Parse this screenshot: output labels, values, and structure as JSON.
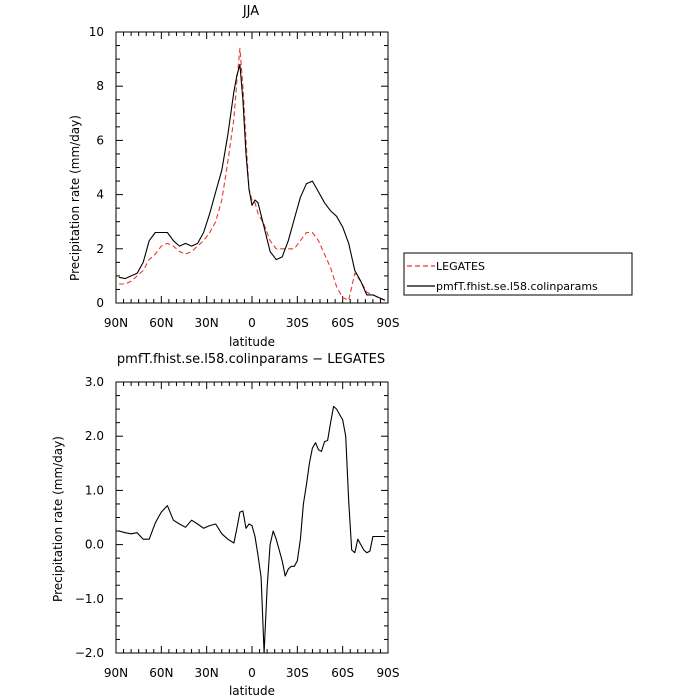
{
  "chart_data": [
    {
      "type": "line",
      "title": "JJA",
      "xlabel": "latitude",
      "ylabel": "Precipitation rate (mm/day)",
      "xlim": [
        -90,
        90
      ],
      "ylim": [
        0,
        10
      ],
      "x_ticks": [
        {
          "v": -90,
          "label": "90N"
        },
        {
          "v": -60,
          "label": "60N"
        },
        {
          "v": -30,
          "label": "30N"
        },
        {
          "v": 0,
          "label": "0"
        },
        {
          "v": 30,
          "label": "30S"
        },
        {
          "v": 60,
          "label": "60S"
        },
        {
          "v": 90,
          "label": "90S"
        }
      ],
      "y_ticks": [
        {
          "v": 0,
          "label": "0"
        },
        {
          "v": 2,
          "label": "2"
        },
        {
          "v": 4,
          "label": "4"
        },
        {
          "v": 6,
          "label": "6"
        },
        {
          "v": 8,
          "label": "8"
        },
        {
          "v": 10,
          "label": "10"
        }
      ],
      "legend_position": "right",
      "series": [
        {
          "name": "LEGATES",
          "color": "#e8392c",
          "dash": true,
          "x": [
            -88,
            -84,
            -80,
            -76,
            -72,
            -68,
            -64,
            -60,
            -56,
            -52,
            -48,
            -44,
            -40,
            -36,
            -32,
            -28,
            -24,
            -20,
            -16,
            -12,
            -10,
            -8,
            -6,
            -4,
            -2,
            0,
            2,
            4,
            8,
            12,
            16,
            20,
            24,
            28,
            32,
            36,
            40,
            44,
            48,
            52,
            56,
            60,
            64,
            68,
            72,
            76,
            80,
            84,
            88
          ],
          "y": [
            0.7,
            0.7,
            0.8,
            1.0,
            1.2,
            1.6,
            1.8,
            2.1,
            2.2,
            2.1,
            1.9,
            1.8,
            1.9,
            2.1,
            2.3,
            2.6,
            3.0,
            3.8,
            5.2,
            6.8,
            8.2,
            9.4,
            8.0,
            6.0,
            4.2,
            3.8,
            3.7,
            3.3,
            2.9,
            2.3,
            2.0,
            2.0,
            2.0,
            2.0,
            2.3,
            2.6,
            2.6,
            2.3,
            1.8,
            1.3,
            0.6,
            0.2,
            0.1,
            1.1,
            0.8,
            0.4,
            0.3,
            0.2,
            0.1
          ]
        },
        {
          "name": "pmfT.fhist.se.l58.colinparams",
          "color": "#000000",
          "dash": false,
          "x": [
            -88,
            -84,
            -80,
            -76,
            -72,
            -68,
            -64,
            -60,
            -56,
            -52,
            -48,
            -44,
            -40,
            -36,
            -32,
            -28,
            -24,
            -20,
            -16,
            -12,
            -10,
            -8,
            -6,
            -4,
            -2,
            0,
            2,
            4,
            8,
            12,
            16,
            20,
            24,
            28,
            32,
            36,
            40,
            44,
            48,
            52,
            56,
            60,
            64,
            68,
            72,
            76,
            80,
            84,
            88
          ],
          "y": [
            0.95,
            0.9,
            1.0,
            1.1,
            1.5,
            2.3,
            2.6,
            2.6,
            2.6,
            2.3,
            2.1,
            2.2,
            2.1,
            2.2,
            2.6,
            3.3,
            4.1,
            4.9,
            6.2,
            7.8,
            8.4,
            8.8,
            7.5,
            5.5,
            4.2,
            3.6,
            3.8,
            3.7,
            2.8,
            1.9,
            1.6,
            1.7,
            2.3,
            3.1,
            3.9,
            4.4,
            4.5,
            4.1,
            3.7,
            3.4,
            3.2,
            2.8,
            2.2,
            1.2,
            0.8,
            0.3,
            0.3,
            0.2,
            0.1
          ]
        }
      ]
    },
    {
      "type": "line",
      "title": "pmfT.fhist.se.l58.colinparams − LEGATES",
      "xlabel": "latitude",
      "ylabel": "Precipitation rate (mm/day)",
      "xlim": [
        -90,
        90
      ],
      "ylim": [
        -2,
        3
      ],
      "x_ticks": [
        {
          "v": -90,
          "label": "90N"
        },
        {
          "v": -60,
          "label": "60N"
        },
        {
          "v": -30,
          "label": "30N"
        },
        {
          "v": 0,
          "label": "0"
        },
        {
          "v": 30,
          "label": "30S"
        },
        {
          "v": 60,
          "label": "60S"
        },
        {
          "v": 90,
          "label": "90S"
        }
      ],
      "y_ticks": [
        {
          "v": -2,
          "label": "−2.0"
        },
        {
          "v": -1,
          "label": "−1.0"
        },
        {
          "v": 0,
          "label": "0.0"
        },
        {
          "v": 1,
          "label": "1.0"
        },
        {
          "v": 2,
          "label": "2.0"
        },
        {
          "v": 3,
          "label": "3.0"
        }
      ],
      "series": [
        {
          "color": "#000000",
          "dash": false,
          "x": [
            -88,
            -84,
            -80,
            -76,
            -72,
            -68,
            -64,
            -60,
            -56,
            -52,
            -48,
            -44,
            -40,
            -36,
            -32,
            -28,
            -24,
            -20,
            -16,
            -12,
            -10,
            -8,
            -6,
            -4,
            -2,
            0,
            2,
            4,
            6,
            8,
            10,
            12,
            14,
            16,
            18,
            20,
            22,
            24,
            26,
            28,
            30,
            32,
            34,
            36,
            38,
            40,
            42,
            44,
            46,
            48,
            50,
            52,
            54,
            56,
            58,
            60,
            62,
            64,
            66,
            68,
            70,
            72,
            74,
            76,
            78,
            80,
            82,
            84,
            86,
            88
          ],
          "y": [
            0.25,
            0.22,
            0.2,
            0.22,
            0.1,
            0.1,
            0.4,
            0.6,
            0.72,
            0.45,
            0.38,
            0.32,
            0.45,
            0.38,
            0.3,
            0.35,
            0.38,
            0.2,
            0.1,
            0.03,
            0.3,
            0.6,
            0.62,
            0.3,
            0.38,
            0.35,
            0.15,
            -0.2,
            -0.6,
            -2.0,
            -0.8,
            0.0,
            0.25,
            0.1,
            -0.1,
            -0.3,
            -0.58,
            -0.45,
            -0.4,
            -0.4,
            -0.3,
            0.1,
            0.75,
            1.1,
            1.5,
            1.78,
            1.88,
            1.75,
            1.72,
            1.9,
            1.92,
            2.25,
            2.55,
            2.5,
            2.4,
            2.3,
            2.0,
            0.8,
            -0.1,
            -0.15,
            0.1,
            0.0,
            -0.1,
            -0.15,
            -0.12,
            0.15,
            0.15,
            0.15,
            0.15,
            0.15
          ]
        }
      ]
    }
  ]
}
